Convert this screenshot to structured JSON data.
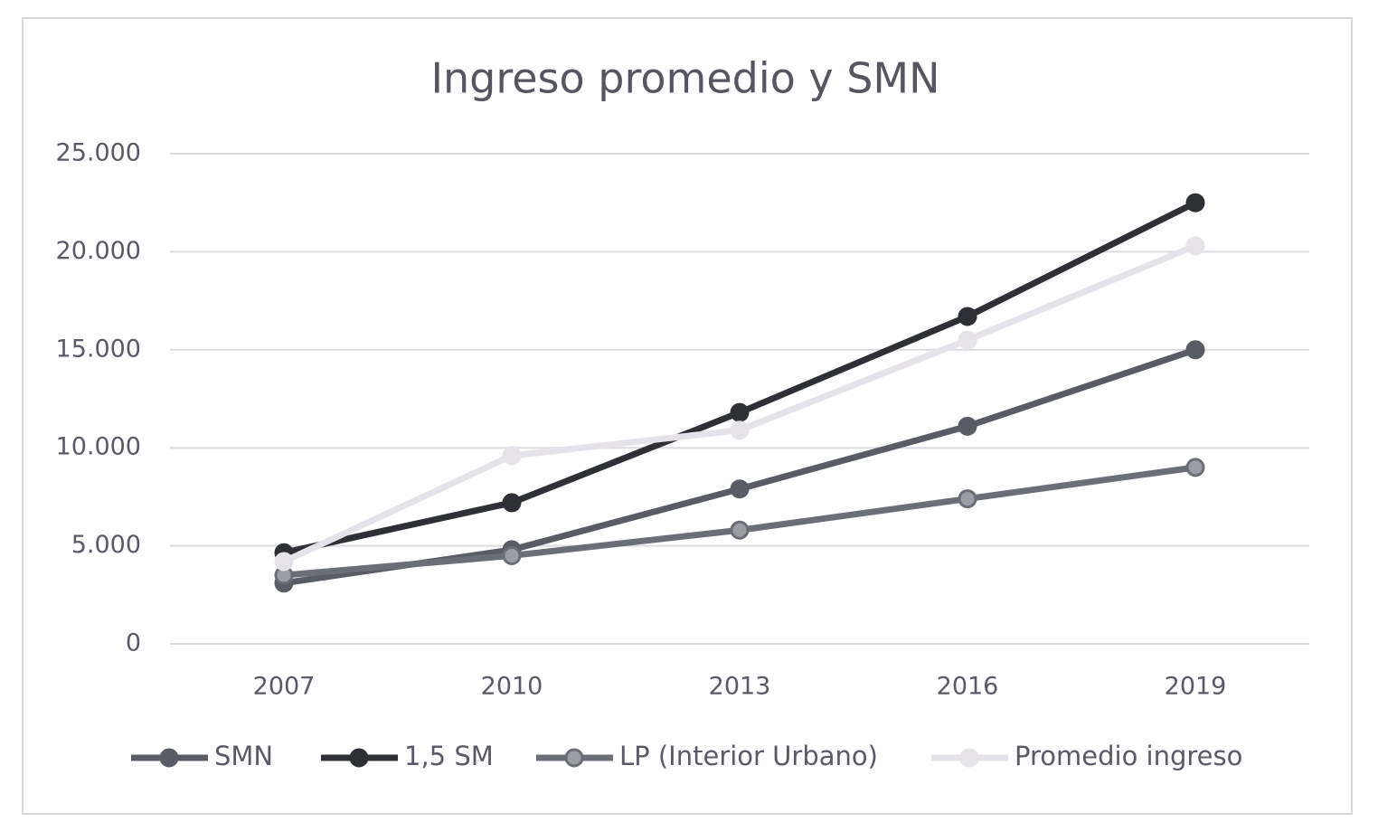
{
  "chart_data": {
    "type": "line",
    "title": "Ingreso promedio y SMN",
    "categories": [
      "2007",
      "2010",
      "2013",
      "2016",
      "2019"
    ],
    "series": [
      {
        "name": "SMN",
        "color": "#595c65",
        "marker_color": "#595c65",
        "values": [
          3100,
          4800,
          7900,
          11100,
          15000
        ]
      },
      {
        "name": "1,5 SM",
        "color": "#2e3035",
        "marker_color": "#2e3035",
        "values": [
          4650,
          7200,
          11800,
          16700,
          22500
        ]
      },
      {
        "name": "LP (Interior Urbano)",
        "color": "#6c6e77",
        "marker_color": "#9c9ea5",
        "values": [
          3500,
          4500,
          5800,
          7400,
          9000
        ]
      },
      {
        "name": "Promedio ingreso",
        "color": "#e5e3e9",
        "marker_color": "#e5e3e9",
        "values": [
          4200,
          9600,
          10900,
          15500,
          20300
        ]
      }
    ],
    "ylim": [
      0,
      25000
    ],
    "yticks": [
      0,
      {
        "value": 5000,
        "label": "5.000"
      },
      {
        "value": 10000,
        "label": "10.000"
      },
      {
        "value": 15000,
        "label": "15.000"
      },
      {
        "value": 20000,
        "label": "20.000"
      },
      {
        "value": 25000,
        "label": "25.000"
      }
    ],
    "grid": true,
    "legend": "bottom"
  }
}
